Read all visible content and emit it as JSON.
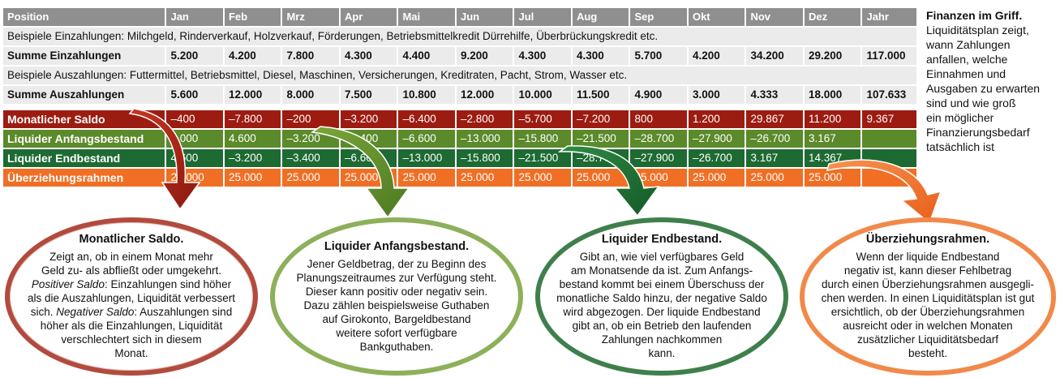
{
  "table": {
    "header": [
      "Position",
      "Jan",
      "Feb",
      "Mrz",
      "Apr",
      "Mai",
      "Jun",
      "Jul",
      "Aug",
      "Sep",
      "Okt",
      "Nov",
      "Dez",
      "Jahr"
    ],
    "income_examples": "Beispiele Einzahlungen: Milchgeld, Rinderverkauf, Holzverkauf, Förderungen, Betriebsmittelkredit Dürrehilfe, Überbrückungskredit etc.",
    "income_sum": [
      "Summe Einzahlungen",
      "5.200",
      "4.200",
      "7.800",
      "4.300",
      "4.400",
      "9.200",
      "4.300",
      "4.300",
      "5.700",
      "4.200",
      "34.200",
      "29.200",
      "117.000"
    ],
    "expense_examples": "Beispiele Auszahlungen: Futtermittel, Betriebsmittel, Diesel, Maschinen, Versicherungen, Kreditraten, Pacht, Strom, Wasser etc.",
    "expense_sum": [
      "Summe Auszahlungen",
      "5.600",
      "12.000",
      "8.000",
      "7.500",
      "10.800",
      "12.000",
      "10.000",
      "11.500",
      "4.900",
      "3.000",
      "4.333",
      "18.000",
      "107.633"
    ],
    "saldo": [
      "Monatlicher Saldo",
      "–400",
      "–7.800",
      "–200",
      "–3.200",
      "–6.400",
      "–2.800",
      "–5.700",
      "–7.200",
      "800",
      "1.200",
      "29.867",
      "11.200",
      "9.367"
    ],
    "anfang": [
      "Liquider Anfangsbestand",
      "5.000",
      "4.600",
      "–3.200",
      "–3.400",
      "–6.600",
      "–13.000",
      "–15.800",
      "–21.500",
      "–28.700",
      "–27.900",
      "–26.700",
      "3.167",
      ""
    ],
    "ende": [
      "Liquider Endbestand",
      "4.600",
      "–3.200",
      "–3.400",
      "–6.600",
      "–13.000",
      "–15.800",
      "–21.500",
      "–28.700",
      "–27.900",
      "–26.700",
      "3.167",
      "14.367",
      ""
    ],
    "ueberziehung": [
      "Überziehungsrahmen",
      "25.000",
      "25.000",
      "25.000",
      "25.000",
      "25.000",
      "25.000",
      "25.000",
      "25.000",
      "25.000",
      "25.000",
      "25.000",
      "25.000",
      ""
    ]
  },
  "sidebar": {
    "title": "Finanzen im Griff.",
    "lines": [
      "Liquiditätsplan zeigt,",
      "wann Zahlungen",
      "anfallen, welche",
      "Einnahmen und",
      "Ausgaben zu erwarten",
      "sind und wie groß",
      "ein möglicher",
      "Finanzierungsbedarf",
      "tatsächlich ist"
    ]
  },
  "explain": {
    "saldo": {
      "title": "Monatlicher Saldo.",
      "l1": "Zeigt an, ob in einem Monat mehr",
      "l2": "Geld zu- als abfließt oder umgekehrt.",
      "l3a": "Positiver Saldo",
      "l3b": ": Einzahlungen sind höher",
      "l4": "als die Auszahlungen, Liquidität verbessert",
      "l5a": "sich. ",
      "l5b": "Negativer Saldo",
      "l5c": ": Auszahlungen sind",
      "l6": "höher als die Einzahlungen, Liquidität",
      "l7": "verschlechtert sich in diesem",
      "l8": "Monat."
    },
    "anfang": {
      "title": "Liquider Anfangsbestand.",
      "lines": [
        "Jener Geldbetrag, der zu Beginn des",
        "Planungszeitraumes zur Verfügung steht.",
        "Dieser kann positiv oder negativ sein.",
        "Dazu zählen beispielsweise Guthaben",
        "auf Girokonto, Bargeldbestand",
        "weitere sofort verfügbare",
        "Bankguthaben."
      ]
    },
    "ende": {
      "title": "Liquider Endbestand.",
      "lines": [
        "Gibt an, wie viel verfügbares Geld",
        "am Monatsende da ist. Zum Anfangs-",
        "bestand kommt bei einem Überschuss der",
        "monatliche Saldo hinzu, der negative Saldo",
        "wird abgezogen. Der liquide Endbestand",
        "gibt an, ob ein Betrieb den laufenden",
        "Zahlungen nachkommen",
        "kann."
      ]
    },
    "ueberziehung": {
      "title": "Überziehungsrahmen.",
      "lines": [
        "Wenn der liquide Endbestand",
        "negativ ist, kann dieser Fehlbetrag",
        "durch einen Überziehungsrahmen ausgegli-",
        "chen werden. In einen Liquiditätsplan ist gut",
        "ersichtlich, ob der Überziehungsrahmen",
        "ausreicht oder in welchen Monaten",
        "zusätzlicher Liquiditätsbedarf",
        "besteht."
      ]
    }
  },
  "colors": {
    "header": "#8f8f8f",
    "saldo": "#9c1c11",
    "anfang": "#5b8a2a",
    "ende": "#1d6a33",
    "ueberziehung": "#f06f25"
  }
}
